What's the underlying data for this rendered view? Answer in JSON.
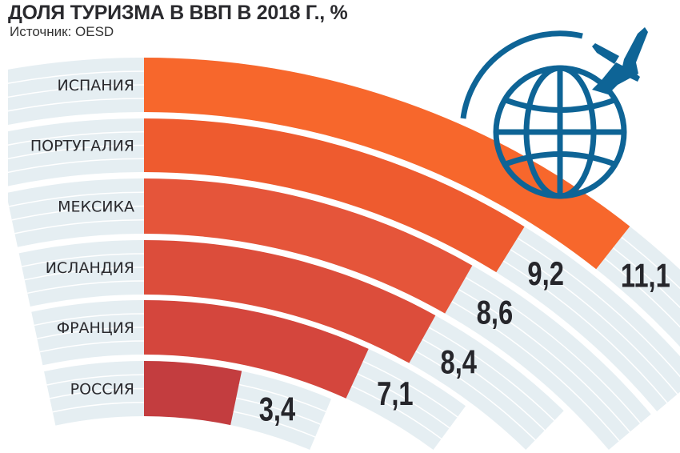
{
  "title": "ДОЛЯ ТУРИЗМА В ВВП В 2018 Г., %",
  "source": "Источник: OESD",
  "icon": "globe-airplane-icon",
  "colors": {
    "icon": "#0e6496",
    "background_bands": "#e5eef2"
  },
  "chart_data": {
    "type": "bar",
    "orientation": "radial-arc",
    "title": "ДОЛЯ ТУРИЗМА В ВВП В 2018 Г., %",
    "categories": [
      "ИСПАНИЯ",
      "ПОРТУГАЛИЯ",
      "МЕКСИКА",
      "ИСЛАНДИЯ",
      "ФРАНЦИЯ",
      "РОССИЯ"
    ],
    "values": [
      11.1,
      9.2,
      8.6,
      8.4,
      7.1,
      3.4
    ],
    "value_labels": [
      "11,1",
      "9,2",
      "8,6",
      "8,4",
      "7,1",
      "3,4"
    ],
    "colors": [
      "#f7672c",
      "#ee5b2f",
      "#e5553a",
      "#dc4d3b",
      "#d4463d",
      "#c33d3f"
    ]
  }
}
